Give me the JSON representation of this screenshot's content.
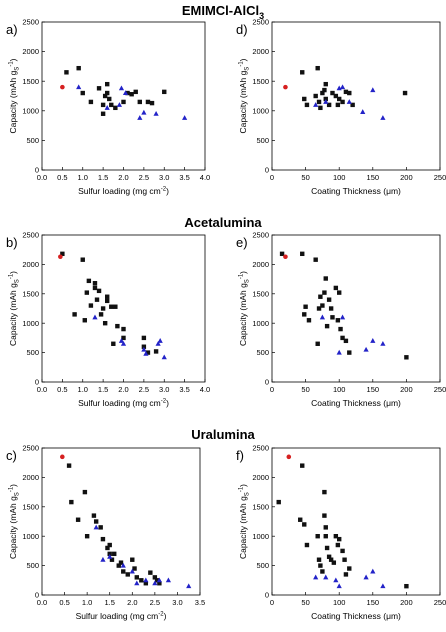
{
  "sections": [
    {
      "title": "EMIMCl-AlCl"
    },
    {
      "title": "Acetalumina"
    },
    {
      "title": "Uralumina"
    }
  ],
  "title_subscript": "3",
  "colors": {
    "black": "#111111",
    "blue": "#2323c8",
    "red": "#d62020"
  },
  "chart_data": [
    {
      "label": "a)",
      "type": "scatter",
      "xlabel": "Sulfur loading (mg cm",
      "xlabel_sup": "-2",
      "xlabel_end": ")",
      "ylabel": "Capacity (mAh g",
      "ylabel_sub": "S",
      "ylabel_sup": "-1",
      "ylabel_end": ")",
      "xlim": [
        0,
        4.0
      ],
      "ylim": [
        0,
        2500
      ],
      "xticks": [
        "0.0",
        "0.5",
        "1.0",
        "1.5",
        "2.0",
        "2.5",
        "3.0",
        "3.5",
        "4.0"
      ],
      "yticks": [
        "0",
        "500",
        "1000",
        "1500",
        "2000",
        "2500"
      ],
      "series": [
        {
          "color": "black",
          "marker": "square",
          "points": [
            [
              0.6,
              1650
            ],
            [
              0.9,
              1720
            ],
            [
              1.0,
              1300
            ],
            [
              1.2,
              1150
            ],
            [
              1.4,
              1380
            ],
            [
              1.5,
              1100
            ],
            [
              1.5,
              950
            ],
            [
              1.55,
              1250
            ],
            [
              1.6,
              1450
            ],
            [
              1.6,
              1300
            ],
            [
              1.65,
              1200
            ],
            [
              1.7,
              1100
            ],
            [
              1.8,
              1050
            ],
            [
              2.0,
              1150
            ],
            [
              2.1,
              1300
            ],
            [
              2.2,
              1280
            ],
            [
              2.3,
              1320
            ],
            [
              2.4,
              1150
            ],
            [
              2.6,
              1150
            ],
            [
              2.7,
              1130
            ],
            [
              3.0,
              1320
            ]
          ]
        },
        {
          "color": "blue",
          "marker": "triangle",
          "points": [
            [
              0.9,
              1400
            ],
            [
              1.6,
              1050
            ],
            [
              1.9,
              1100
            ],
            [
              1.95,
              1380
            ],
            [
              2.05,
              1300
            ],
            [
              2.4,
              880
            ],
            [
              2.5,
              970
            ],
            [
              2.8,
              950
            ],
            [
              3.5,
              880
            ]
          ]
        },
        {
          "color": "red",
          "marker": "circle",
          "points": [
            [
              0.5,
              1400
            ]
          ]
        }
      ]
    },
    {
      "label": "d)",
      "type": "scatter",
      "xlabel": "Coating Thickness (μm)",
      "xlabel_sup": "",
      "xlabel_end": "",
      "ylabel": "Capacity (mAh g",
      "ylabel_sub": "S",
      "ylabel_sup": "-1",
      "ylabel_end": ")",
      "xlim": [
        0,
        250
      ],
      "ylim": [
        0,
        2500
      ],
      "xticks": [
        "0",
        "50",
        "100",
        "150",
        "200",
        "250"
      ],
      "yticks": [
        "0",
        "500",
        "1000",
        "1500",
        "2000",
        "2500"
      ],
      "series": [
        {
          "color": "black",
          "marker": "square",
          "points": [
            [
              45,
              1650
            ],
            [
              48,
              1200
            ],
            [
              52,
              1100
            ],
            [
              65,
              1250
            ],
            [
              68,
              1720
            ],
            [
              70,
              1150
            ],
            [
              72,
              1050
            ],
            [
              75,
              1300
            ],
            [
              78,
              1350
            ],
            [
              80,
              1450
            ],
            [
              80,
              1200
            ],
            [
              85,
              1100
            ],
            [
              90,
              1300
            ],
            [
              95,
              1250
            ],
            [
              98,
              1100
            ],
            [
              100,
              1200
            ],
            [
              105,
              1150
            ],
            [
              110,
              1320
            ],
            [
              115,
              1300
            ],
            [
              120,
              1100
            ],
            [
              198,
              1300
            ]
          ]
        },
        {
          "color": "blue",
          "marker": "triangle",
          "points": [
            [
              65,
              1100
            ],
            [
              80,
              1150
            ],
            [
              100,
              1380
            ],
            [
              105,
              1400
            ],
            [
              115,
              1150
            ],
            [
              135,
              980
            ],
            [
              150,
              1350
            ],
            [
              165,
              880
            ]
          ]
        },
        {
          "color": "red",
          "marker": "circle",
          "points": [
            [
              20,
              1400
            ]
          ]
        }
      ]
    },
    {
      "label": "b)",
      "type": "scatter",
      "xlabel": "Sulfur loading (mg cm",
      "xlabel_sup": "-2",
      "xlabel_end": ")",
      "ylabel": "Capacity (mAh g",
      "ylabel_sub": "S",
      "ylabel_sup": "-1",
      "ylabel_end": ")",
      "xlim": [
        0,
        4.0
      ],
      "ylim": [
        0,
        2500
      ],
      "xticks": [
        "0.0",
        "0.5",
        "1.0",
        "1.5",
        "2.0",
        "2.5",
        "3.0",
        "3.5",
        "4.0"
      ],
      "yticks": [
        "0",
        "500",
        "1000",
        "1500",
        "2000",
        "2500"
      ],
      "series": [
        {
          "color": "black",
          "marker": "square",
          "points": [
            [
              0.5,
              2180
            ],
            [
              0.8,
              1150
            ],
            [
              1.0,
              2080
            ],
            [
              1.05,
              1050
            ],
            [
              1.1,
              1520
            ],
            [
              1.15,
              1720
            ],
            [
              1.2,
              1300
            ],
            [
              1.3,
              1680
            ],
            [
              1.3,
              1600
            ],
            [
              1.35,
              1400
            ],
            [
              1.4,
              1550
            ],
            [
              1.45,
              1150
            ],
            [
              1.5,
              1250
            ],
            [
              1.55,
              1000
            ],
            [
              1.6,
              1450
            ],
            [
              1.6,
              1380
            ],
            [
              1.7,
              1280
            ],
            [
              1.75,
              650
            ],
            [
              1.8,
              1280
            ],
            [
              1.85,
              950
            ],
            [
              2.0,
              900
            ],
            [
              2.0,
              750
            ],
            [
              2.5,
              750
            ],
            [
              2.5,
              600
            ],
            [
              2.6,
              500
            ],
            [
              2.8,
              520
            ]
          ]
        },
        {
          "color": "blue",
          "marker": "triangle",
          "points": [
            [
              1.3,
              1100
            ],
            [
              1.95,
              700
            ],
            [
              2.0,
              650
            ],
            [
              2.5,
              550
            ],
            [
              2.55,
              480
            ],
            [
              2.85,
              650
            ],
            [
              2.9,
              700
            ],
            [
              3.0,
              420
            ]
          ]
        },
        {
          "color": "red",
          "marker": "circle",
          "points": [
            [
              0.45,
              2130
            ]
          ]
        }
      ]
    },
    {
      "label": "e)",
      "type": "scatter",
      "xlabel": "Coating Thickness (μm)",
      "xlabel_sup": "",
      "xlabel_end": "",
      "ylabel": "Capacity (mAh g",
      "ylabel_sub": "S",
      "ylabel_sup": "-1",
      "ylabel_end": ")",
      "xlim": [
        0,
        250
      ],
      "ylim": [
        0,
        2500
      ],
      "xticks": [
        "0",
        "50",
        "100",
        "150",
        "200",
        "250"
      ],
      "yticks": [
        "0",
        "500",
        "1000",
        "1500",
        "2000",
        "2500"
      ],
      "series": [
        {
          "color": "black",
          "marker": "square",
          "points": [
            [
              15,
              2180
            ],
            [
              45,
              2180
            ],
            [
              48,
              1150
            ],
            [
              50,
              1280
            ],
            [
              55,
              1050
            ],
            [
              65,
              2080
            ],
            [
              68,
              650
            ],
            [
              70,
              1250
            ],
            [
              72,
              1450
            ],
            [
              75,
              1300
            ],
            [
              78,
              1520
            ],
            [
              80,
              1760
            ],
            [
              82,
              950
            ],
            [
              85,
              1400
            ],
            [
              88,
              1250
            ],
            [
              90,
              1100
            ],
            [
              95,
              1600
            ],
            [
              98,
              1050
            ],
            [
              100,
              1520
            ],
            [
              102,
              900
            ],
            [
              105,
              750
            ],
            [
              110,
              700
            ],
            [
              115,
              500
            ],
            [
              200,
              420
            ]
          ]
        },
        {
          "color": "blue",
          "marker": "triangle",
          "points": [
            [
              75,
              1100
            ],
            [
              100,
              500
            ],
            [
              105,
              1100
            ],
            [
              140,
              550
            ],
            [
              150,
              700
            ],
            [
              165,
              650
            ]
          ]
        },
        {
          "color": "red",
          "marker": "circle",
          "points": [
            [
              20,
              2130
            ]
          ]
        }
      ]
    },
    {
      "label": "c)",
      "type": "scatter",
      "xlabel": "Sulfur loading (mg cm",
      "xlabel_sup": "-2",
      "xlabel_end": ")",
      "ylabel": "Capacity (mAh g",
      "ylabel_sub": "S",
      "ylabel_sup": "-1",
      "ylabel_end": ")",
      "xlim": [
        0,
        3.5
      ],
      "ylim": [
        0,
        2500
      ],
      "xticks": [
        "0.0",
        "0.5",
        "1.0",
        "1.5",
        "2.0",
        "2.5",
        "3.0",
        "3.5"
      ],
      "yticks": [
        "0",
        "500",
        "1000",
        "1500",
        "2000",
        "2500"
      ],
      "series": [
        {
          "color": "black",
          "marker": "square",
          "points": [
            [
              0.6,
              2200
            ],
            [
              0.65,
              1580
            ],
            [
              0.8,
              1280
            ],
            [
              0.95,
              1750
            ],
            [
              1.0,
              1000
            ],
            [
              1.15,
              1350
            ],
            [
              1.2,
              1250
            ],
            [
              1.3,
              1150
            ],
            [
              1.35,
              950
            ],
            [
              1.45,
              800
            ],
            [
              1.5,
              850
            ],
            [
              1.5,
              700
            ],
            [
              1.55,
              600
            ],
            [
              1.6,
              700
            ],
            [
              1.7,
              500
            ],
            [
              1.75,
              550
            ],
            [
              1.8,
              400
            ],
            [
              1.9,
              350
            ],
            [
              2.0,
              600
            ],
            [
              2.05,
              450
            ],
            [
              2.1,
              300
            ],
            [
              2.2,
              250
            ],
            [
              2.3,
              200
            ],
            [
              2.4,
              380
            ],
            [
              2.5,
              300
            ],
            [
              2.55,
              250
            ],
            [
              2.6,
              200
            ]
          ]
        },
        {
          "color": "blue",
          "marker": "triangle",
          "points": [
            [
              1.2,
              1150
            ],
            [
              1.35,
              600
            ],
            [
              1.5,
              650
            ],
            [
              1.8,
              500
            ],
            [
              2.0,
              400
            ],
            [
              2.1,
              200
            ],
            [
              2.3,
              250
            ],
            [
              2.5,
              200
            ],
            [
              2.6,
              250
            ],
            [
              2.8,
              250
            ],
            [
              3.25,
              150
            ]
          ]
        },
        {
          "color": "red",
          "marker": "circle",
          "points": [
            [
              0.45,
              2350
            ]
          ]
        }
      ]
    },
    {
      "label": "f)",
      "type": "scatter",
      "xlabel": "Coating Thickness (μm)",
      "xlabel_sup": "",
      "xlabel_end": "",
      "ylabel": "Capacity (mAh g",
      "ylabel_sub": "S",
      "ylabel_sup": "-1",
      "ylabel_end": ")",
      "xlim": [
        0,
        250
      ],
      "ylim": [
        0,
        2500
      ],
      "xticks": [
        "0",
        "50",
        "100",
        "150",
        "200",
        "250"
      ],
      "yticks": [
        "0",
        "500",
        "1000",
        "1500",
        "2000",
        "2500"
      ],
      "series": [
        {
          "color": "black",
          "marker": "square",
          "points": [
            [
              10,
              1580
            ],
            [
              42,
              1280
            ],
            [
              45,
              2200
            ],
            [
              48,
              1200
            ],
            [
              52,
              850
            ],
            [
              68,
              1000
            ],
            [
              70,
              600
            ],
            [
              72,
              500
            ],
            [
              75,
              400
            ],
            [
              78,
              1750
            ],
            [
              78,
              1350
            ],
            [
              80,
              1150
            ],
            [
              80,
              1000
            ],
            [
              82,
              800
            ],
            [
              85,
              650
            ],
            [
              88,
              600
            ],
            [
              92,
              550
            ],
            [
              95,
              1000
            ],
            [
              98,
              850
            ],
            [
              100,
              950
            ],
            [
              105,
              750
            ],
            [
              108,
              600
            ],
            [
              110,
              350
            ],
            [
              115,
              450
            ],
            [
              200,
              150
            ]
          ]
        },
        {
          "color": "blue",
          "marker": "triangle",
          "points": [
            [
              65,
              300
            ],
            [
              80,
              300
            ],
            [
              95,
              250
            ],
            [
              100,
              150
            ],
            [
              140,
              300
            ],
            [
              150,
              400
            ],
            [
              165,
              150
            ]
          ]
        },
        {
          "color": "red",
          "marker": "circle",
          "points": [
            [
              25,
              2350
            ]
          ]
        }
      ]
    }
  ]
}
